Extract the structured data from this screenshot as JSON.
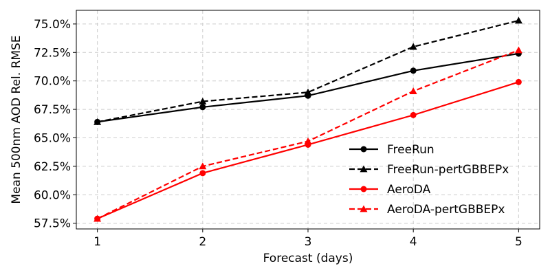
{
  "chart_data": {
    "type": "line",
    "x": [
      1,
      2,
      3,
      4,
      5
    ],
    "xticks": [
      "1",
      "2",
      "3",
      "4",
      "5"
    ],
    "xlim": [
      0.8,
      5.2
    ],
    "ylim": [
      57.0,
      76.2
    ],
    "yticks": [
      "57.5%",
      "60.0%",
      "62.5%",
      "65.0%",
      "67.5%",
      "70.0%",
      "72.5%",
      "75.0%"
    ],
    "ytick_values": [
      57.5,
      60.0,
      62.5,
      65.0,
      67.5,
      70.0,
      72.5,
      75.0
    ],
    "xlabel": "Forecast (days)",
    "ylabel": "Mean 500nm AOD Rel. RMSE",
    "grid": true,
    "legend_position": "lower-right",
    "series": [
      {
        "name": "FreeRun",
        "values": [
          66.4,
          67.7,
          68.7,
          70.9,
          72.4
        ],
        "color": "#000000",
        "linestyle": "solid",
        "marker": "circle"
      },
      {
        "name": "FreeRun-pertGBBEPx",
        "values": [
          66.4,
          68.2,
          69.0,
          73.0,
          75.3
        ],
        "color": "#000000",
        "linestyle": "dashed",
        "marker": "triangle"
      },
      {
        "name": "AeroDA",
        "values": [
          57.9,
          61.9,
          64.4,
          67.0,
          69.9
        ],
        "color": "#ff0000",
        "linestyle": "solid",
        "marker": "circle"
      },
      {
        "name": "AeroDA-pertGBBEPx",
        "values": [
          57.9,
          62.5,
          64.7,
          69.1,
          72.7
        ],
        "color": "#ff0000",
        "linestyle": "dashed",
        "marker": "triangle"
      }
    ]
  }
}
